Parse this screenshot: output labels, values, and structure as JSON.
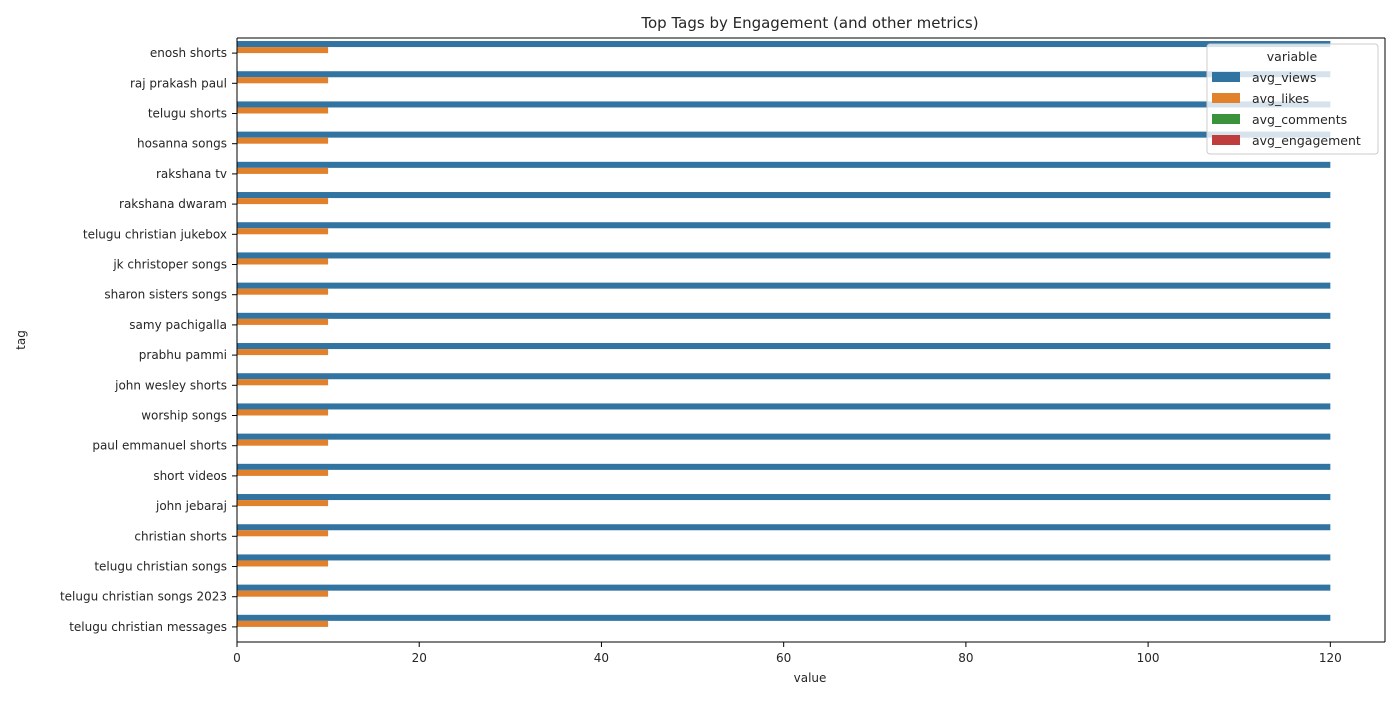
{
  "chart_data": {
    "type": "bar",
    "orientation": "horizontal",
    "title": "Top Tags by Engagement (and other metrics)",
    "xlabel": "value",
    "ylabel": "tag",
    "xlim": [
      0,
      126
    ],
    "xticks": [
      0,
      20,
      40,
      60,
      80,
      100,
      120
    ],
    "grid": false,
    "legend": {
      "title": "variable",
      "position": "top-right"
    },
    "categories": [
      "enosh shorts",
      "raj prakash paul",
      "telugu shorts",
      "hosanna songs",
      "rakshana tv",
      "rakshana dwaram",
      "telugu christian jukebox",
      "jk christoper songs",
      "sharon sisters songs",
      "samy pachigalla",
      "prabhu pammi",
      "john wesley shorts",
      "worship songs",
      "paul emmanuel shorts",
      "short videos",
      "john jebaraj",
      "christian shorts",
      "telugu christian songs",
      "telugu christian songs 2023",
      "telugu christian messages"
    ],
    "series": [
      {
        "name": "avg_views",
        "color": "#3274a1",
        "values": [
          120,
          120,
          120,
          120,
          120,
          120,
          120,
          120,
          120,
          120,
          120,
          120,
          120,
          120,
          120,
          120,
          120,
          120,
          120,
          120
        ]
      },
      {
        "name": "avg_likes",
        "color": "#e1812c",
        "values": [
          10,
          10,
          10,
          10,
          10,
          10,
          10,
          10,
          10,
          10,
          10,
          10,
          10,
          10,
          10,
          10,
          10,
          10,
          10,
          10
        ]
      },
      {
        "name": "avg_comments",
        "color": "#3a923a",
        "values": [
          0,
          0,
          0,
          0,
          0,
          0,
          0,
          0,
          0,
          0,
          0,
          0,
          0,
          0,
          0,
          0,
          0,
          0,
          0,
          0
        ]
      },
      {
        "name": "avg_engagement",
        "color": "#c03d3e",
        "values": [
          0,
          0,
          0,
          0,
          0,
          0,
          0,
          0,
          0,
          0,
          0,
          0,
          0,
          0,
          0,
          0,
          0,
          0,
          0,
          0
        ]
      }
    ]
  }
}
